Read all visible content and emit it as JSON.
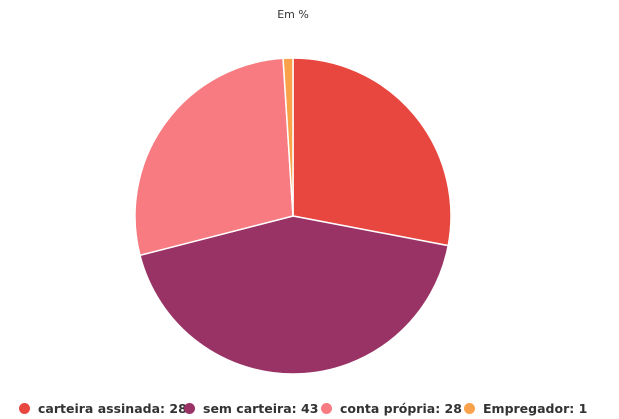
{
  "chart_data": {
    "type": "pie",
    "title": "Em %",
    "categories": [
      "carteira assinada",
      "sem carteira",
      "conta própria",
      "Empregador"
    ],
    "values": [
      28,
      43,
      28,
      1
    ],
    "colors": [
      "#e8473f",
      "#993366",
      "#f77b80",
      "#f9a24b"
    ],
    "start_angle_deg": 0,
    "direction": "clockwise",
    "legend_position": "bottom",
    "legend_format": "{name}: {value}"
  },
  "title": "Em %",
  "legend": [
    {
      "label": "carteira assinada: 28",
      "color": "#e8473f"
    },
    {
      "label": "sem carteira: 43",
      "color": "#993366"
    },
    {
      "label": "conta própria: 28",
      "color": "#f77b80"
    },
    {
      "label": "Empregador: 1",
      "color": "#f9a24b"
    }
  ]
}
